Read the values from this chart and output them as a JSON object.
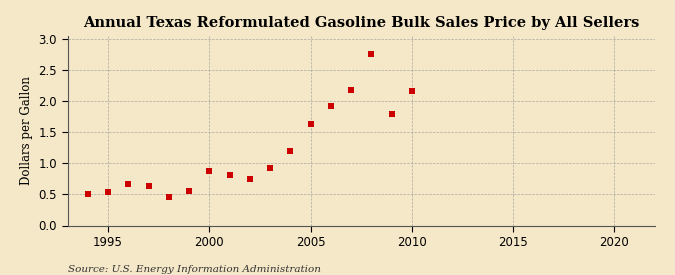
{
  "title": "Annual Texas Reformulated Gasoline Bulk Sales Price by All Sellers",
  "ylabel": "Dollars per Gallon",
  "source": "Source: U.S. Energy Information Administration",
  "background_color": "#f5e8c8",
  "plot_bg_color": "#f5e8c8",
  "years": [
    1994,
    1995,
    1996,
    1997,
    1998,
    1999,
    2000,
    2001,
    2002,
    2003,
    2004,
    2005,
    2006,
    2007,
    2008,
    2009,
    2010
  ],
  "values": [
    0.5,
    0.54,
    0.66,
    0.63,
    0.46,
    0.55,
    0.87,
    0.81,
    0.75,
    0.93,
    1.2,
    1.63,
    1.92,
    2.18,
    2.75,
    1.8,
    2.16
  ],
  "marker_color": "#cc0000",
  "xlim": [
    1993,
    2022
  ],
  "ylim": [
    0.0,
    3.05
  ],
  "xticks": [
    1995,
    2000,
    2005,
    2010,
    2015,
    2020
  ],
  "yticks": [
    0.0,
    0.5,
    1.0,
    1.5,
    2.0,
    2.5,
    3.0
  ],
  "title_fontsize": 10.5,
  "label_fontsize": 8.5,
  "tick_fontsize": 8.5,
  "source_fontsize": 7.5
}
